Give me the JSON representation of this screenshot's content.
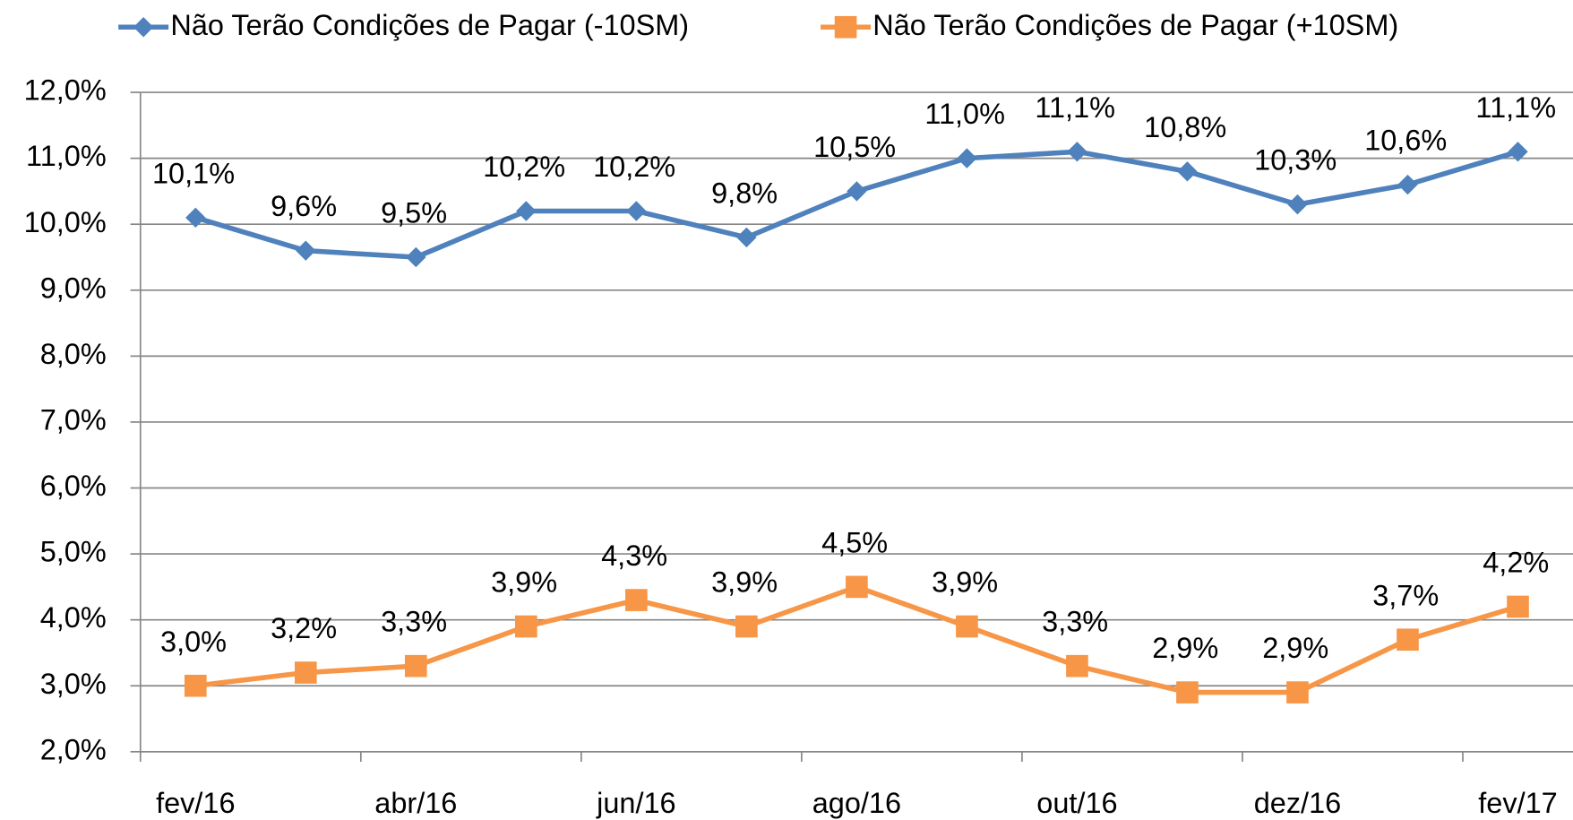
{
  "chart_data": {
    "type": "line",
    "categories": [
      "fev/16",
      null,
      "abr/16",
      null,
      "jun/16",
      null,
      "ago/16",
      null,
      "out/16",
      null,
      "dez/16",
      null,
      "fev/17"
    ],
    "series": [
      {
        "name": "Não Terão Condições de Pagar (-10SM)",
        "color": "#4f81bd",
        "marker": "diamond",
        "values": [
          10.1,
          9.6,
          9.5,
          10.2,
          10.2,
          9.8,
          10.5,
          11.0,
          11.1,
          10.8,
          10.3,
          10.6,
          11.1
        ],
        "value_labels": [
          "10,1%",
          "9,6%",
          "9,5%",
          "10,2%",
          "10,2%",
          "9,8%",
          "10,5%",
          "11,0%",
          "11,1%",
          "10,8%",
          "10,3%",
          "10,6%",
          "11,1%"
        ]
      },
      {
        "name": "Não Terão Condições de Pagar (+10SM)",
        "color": "#f79646",
        "marker": "square",
        "values": [
          3.0,
          3.2,
          3.3,
          3.9,
          4.3,
          3.9,
          4.5,
          3.9,
          3.3,
          2.9,
          2.9,
          3.7,
          4.2
        ],
        "value_labels": [
          "3,0%",
          "3,2%",
          "3,3%",
          "3,9%",
          "4,3%",
          "3,9%",
          "4,5%",
          "3,9%",
          "3,3%",
          "2,9%",
          "2,9%",
          "3,7%",
          "4,2%"
        ]
      }
    ],
    "ylim": [
      2,
      12
    ],
    "yticks": [
      {
        "value": 2,
        "label": "2,0%"
      },
      {
        "value": 3,
        "label": "3,0%"
      },
      {
        "value": 4,
        "label": "4,0%"
      },
      {
        "value": 5,
        "label": "5,0%"
      },
      {
        "value": 6,
        "label": "6,0%"
      },
      {
        "value": 7,
        "label": "7,0%"
      },
      {
        "value": 8,
        "label": "8,0%"
      },
      {
        "value": 9,
        "label": "9,0%"
      },
      {
        "value": 10,
        "label": "10,0%"
      },
      {
        "value": 11,
        "label": "11,0%"
      },
      {
        "value": 12,
        "label": "12,0%"
      }
    ],
    "grid": true,
    "legend": "top"
  }
}
